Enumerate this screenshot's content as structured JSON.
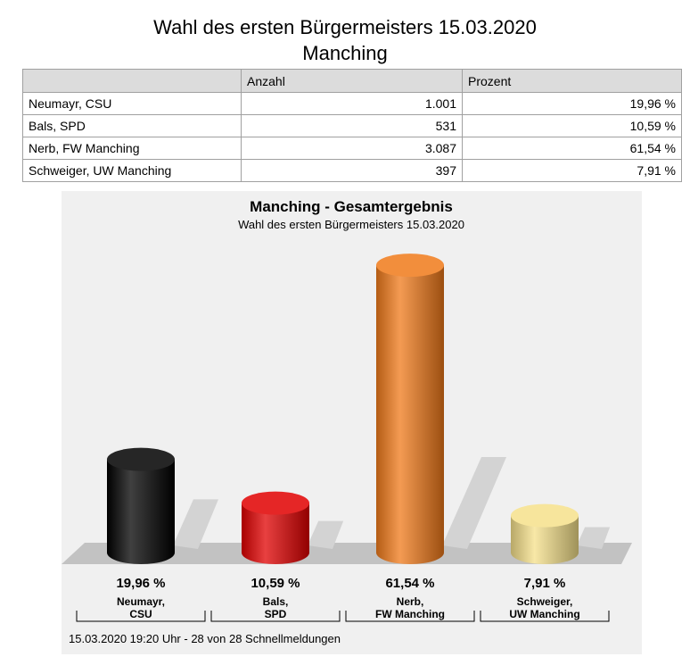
{
  "page": {
    "title_line1": "Wahl des ersten Bürgermeisters 15.03.2020",
    "title_line2": "Manching"
  },
  "table": {
    "headers": [
      "",
      "Anzahl",
      "Prozent"
    ],
    "rows": [
      {
        "name": "Neumayr, CSU",
        "count": "1.001",
        "percent": "19,96 %"
      },
      {
        "name": "Bals, SPD",
        "count": "531",
        "percent": "10,59 %"
      },
      {
        "name": "Nerb, FW Manching",
        "count": "3.087",
        "percent": "61,54 %"
      },
      {
        "name": "Schweiger, UW Manching",
        "count": "397",
        "percent": "7,91 %"
      }
    ]
  },
  "chart_data": {
    "type": "bar",
    "title": "Manching - Gesamtergebnis",
    "subtitle": "Wahl des ersten Bürgermeisters 15.03.2020",
    "categories": [
      {
        "line1": "Neumayr,",
        "line2": "CSU"
      },
      {
        "line1": "Bals,",
        "line2": "SPD"
      },
      {
        "line1": "Nerb,",
        "line2": "FW Manching"
      },
      {
        "line1": "Schweiger,",
        "line2": "UW Manching"
      }
    ],
    "values": [
      19.96,
      10.59,
      61.54,
      7.91
    ],
    "value_labels": [
      "19,96 %",
      "10,59 %",
      "61,54 %",
      "7,91 %"
    ],
    "colors": [
      "#000000",
      "#e00000",
      "#f07a1a",
      "#f5e08a"
    ],
    "ylim": [
      0,
      65
    ],
    "footer": "15.03.2020 19:20 Uhr - 28 von 28 Schnellmeldungen"
  }
}
